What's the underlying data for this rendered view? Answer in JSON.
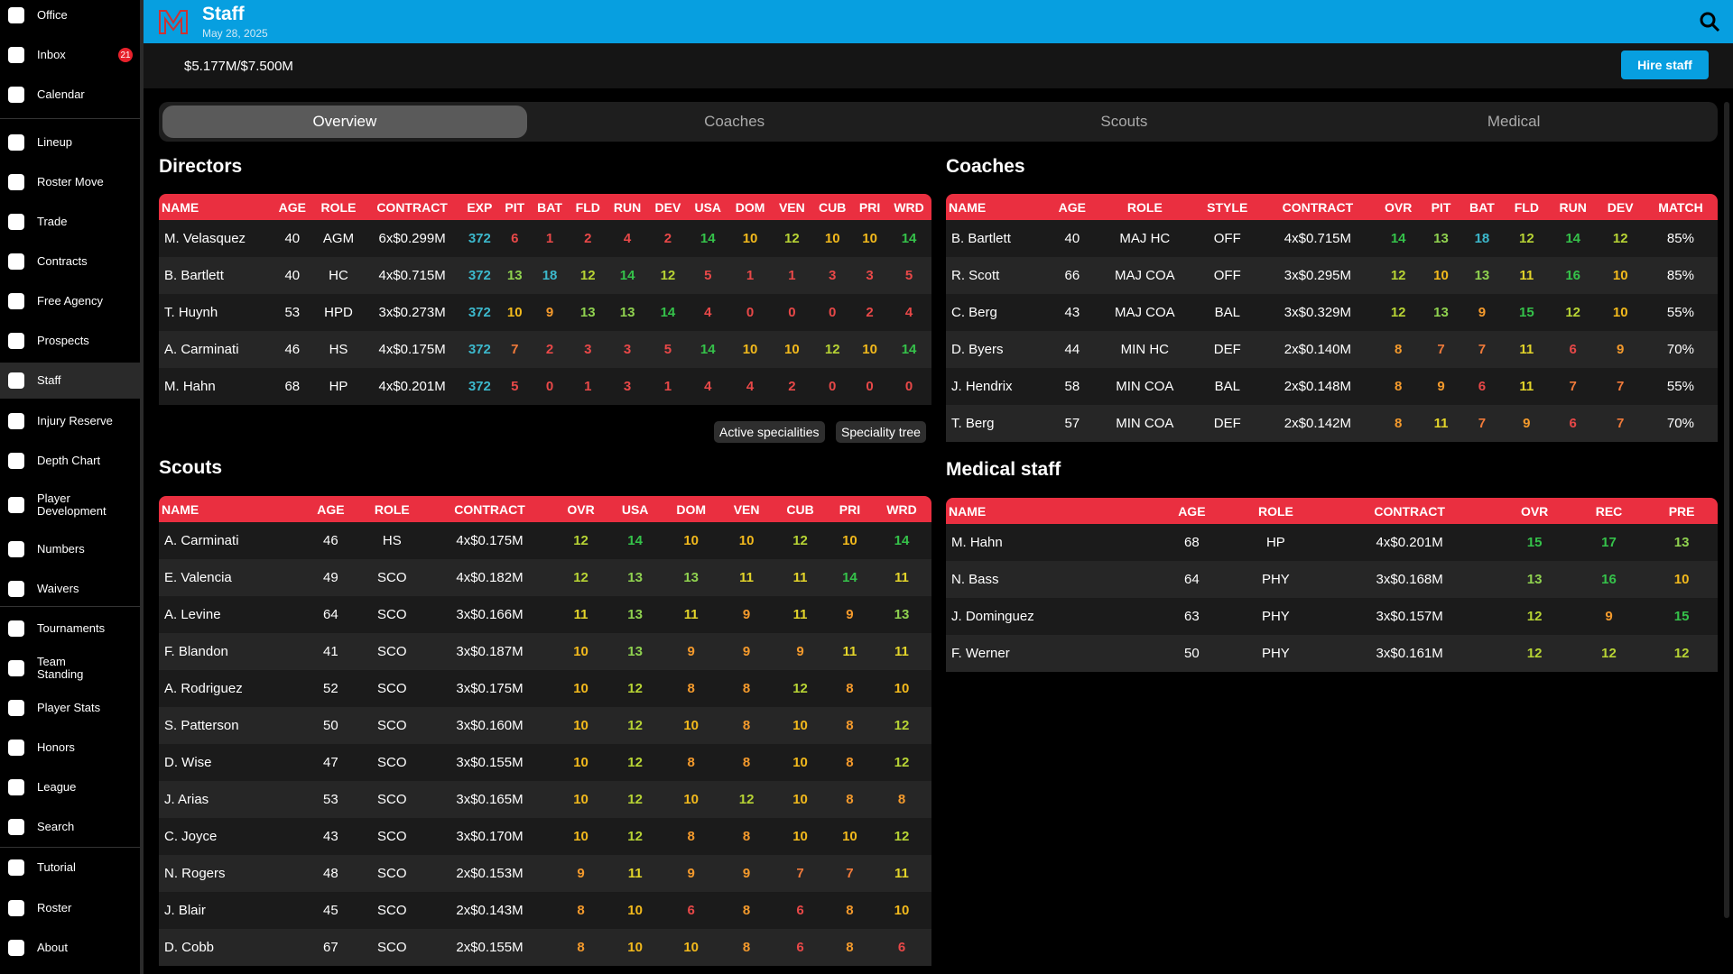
{
  "sidebar": {
    "items": [
      {
        "label": "Office"
      },
      {
        "label": "Inbox",
        "badge": "21"
      },
      {
        "label": "Calendar"
      },
      {
        "label": "Lineup"
      },
      {
        "label": "Roster Move"
      },
      {
        "label": "Trade"
      },
      {
        "label": "Contracts"
      },
      {
        "label": "Free Agency"
      },
      {
        "label": "Prospects"
      },
      {
        "label": "Staff"
      },
      {
        "label": "Injury Reserve"
      },
      {
        "label": "Depth Chart"
      },
      {
        "label": "Player Development"
      },
      {
        "label": "Numbers"
      },
      {
        "label": "Waivers"
      },
      {
        "label": "Tournaments"
      },
      {
        "label": "Team Standing"
      },
      {
        "label": "Player Stats"
      },
      {
        "label": "Honors"
      },
      {
        "label": "League"
      },
      {
        "label": "Search"
      },
      {
        "label": "Tutorial"
      },
      {
        "label": "Roster"
      },
      {
        "label": "About"
      }
    ]
  },
  "header": {
    "title": "Staff",
    "date": "May 28, 2025"
  },
  "budget": "$5.177M/$7.500M",
  "hire_button": "Hire staff",
  "tabs": [
    "Overview",
    "Coaches",
    "Scouts",
    "Medical"
  ],
  "speciality_buttons": [
    "Active specialities",
    "Speciality tree"
  ],
  "tables": {
    "directors": {
      "title": "Directors",
      "columns": [
        "NAME",
        "AGE",
        "ROLE",
        "CONTRACT",
        "EXP",
        "PIT",
        "BAT",
        "FLD",
        "RUN",
        "DEV",
        "USA",
        "DOM",
        "VEN",
        "CUB",
        "PRI",
        "WRD"
      ],
      "rows": [
        [
          "M. Velasquez",
          40,
          "AGM",
          "6x$0.299M",
          372,
          6,
          1,
          2,
          4,
          2,
          14,
          10,
          12,
          10,
          10,
          14
        ],
        [
          "B. Bartlett",
          40,
          "HC",
          "4x$0.715M",
          372,
          13,
          18,
          12,
          14,
          12,
          5,
          1,
          1,
          3,
          3,
          5
        ],
        [
          "T. Huynh",
          53,
          "HPD",
          "3x$0.273M",
          372,
          10,
          9,
          13,
          13,
          14,
          4,
          0,
          0,
          0,
          2,
          4
        ],
        [
          "A. Carminati",
          46,
          "HS",
          "4x$0.175M",
          372,
          7,
          2,
          3,
          3,
          5,
          14,
          10,
          10,
          12,
          10,
          14
        ],
        [
          "M. Hahn",
          68,
          "HP",
          "4x$0.201M",
          372,
          5,
          0,
          1,
          3,
          1,
          4,
          4,
          2,
          0,
          0,
          0
        ]
      ]
    },
    "coaches": {
      "title": "Coaches",
      "columns": [
        "NAME",
        "AGE",
        "ROLE",
        "STYLE",
        "CONTRACT",
        "OVR",
        "PIT",
        "BAT",
        "FLD",
        "RUN",
        "DEV",
        "MATCH"
      ],
      "rows": [
        [
          "B. Bartlett",
          40,
          "MAJ HC",
          "OFF",
          "4x$0.715M",
          14,
          13,
          18,
          12,
          14,
          12,
          "85%"
        ],
        [
          "R. Scott",
          66,
          "MAJ COA",
          "OFF",
          "3x$0.295M",
          12,
          10,
          13,
          11,
          16,
          10,
          "85%"
        ],
        [
          "C. Berg",
          43,
          "MAJ COA",
          "BAL",
          "3x$0.329M",
          12,
          13,
          9,
          15,
          12,
          10,
          "55%"
        ],
        [
          "D. Byers",
          44,
          "MIN HC",
          "DEF",
          "2x$0.140M",
          8,
          7,
          7,
          11,
          6,
          9,
          "70%"
        ],
        [
          "J. Hendrix",
          58,
          "MIN COA",
          "BAL",
          "2x$0.148M",
          8,
          9,
          6,
          11,
          7,
          7,
          "55%"
        ],
        [
          "T. Berg",
          57,
          "MIN COA",
          "DEF",
          "2x$0.142M",
          8,
          11,
          7,
          9,
          6,
          7,
          "70%"
        ]
      ]
    },
    "scouts": {
      "title": "Scouts",
      "columns": [
        "NAME",
        "AGE",
        "ROLE",
        "CONTRACT",
        "OVR",
        "USA",
        "DOM",
        "VEN",
        "CUB",
        "PRI",
        "WRD"
      ],
      "rows": [
        [
          "A. Carminati",
          46,
          "HS",
          "4x$0.175M",
          12,
          14,
          10,
          10,
          12,
          10,
          14
        ],
        [
          "E. Valencia",
          49,
          "SCO",
          "4x$0.182M",
          12,
          13,
          13,
          11,
          11,
          14,
          11
        ],
        [
          "A. Levine",
          64,
          "SCO",
          "3x$0.166M",
          11,
          13,
          11,
          9,
          11,
          9,
          13
        ],
        [
          "F. Blandon",
          41,
          "SCO",
          "3x$0.187M",
          10,
          13,
          9,
          9,
          9,
          11,
          11
        ],
        [
          "A. Rodriguez",
          52,
          "SCO",
          "3x$0.175M",
          10,
          12,
          8,
          8,
          12,
          8,
          10
        ],
        [
          "S. Patterson",
          50,
          "SCO",
          "3x$0.160M",
          10,
          12,
          10,
          8,
          10,
          8,
          12
        ],
        [
          "D. Wise",
          47,
          "SCO",
          "3x$0.155M",
          10,
          12,
          8,
          8,
          10,
          8,
          12
        ],
        [
          "J. Arias",
          53,
          "SCO",
          "3x$0.165M",
          10,
          12,
          10,
          12,
          10,
          8,
          8
        ],
        [
          "C. Joyce",
          43,
          "SCO",
          "3x$0.170M",
          10,
          12,
          8,
          8,
          10,
          10,
          12
        ],
        [
          "N. Rogers",
          48,
          "SCO",
          "2x$0.153M",
          9,
          11,
          9,
          9,
          7,
          7,
          11
        ],
        [
          "J. Blair",
          45,
          "SCO",
          "2x$0.143M",
          8,
          10,
          6,
          8,
          6,
          8,
          10
        ],
        [
          "D. Cobb",
          67,
          "SCO",
          "2x$0.155M",
          8,
          10,
          10,
          8,
          6,
          8,
          6
        ]
      ]
    },
    "medical": {
      "title": "Medical staff",
      "columns": [
        "NAME",
        "AGE",
        "ROLE",
        "CONTRACT",
        "OVR",
        "REC",
        "PRE"
      ],
      "rows": [
        [
          "M. Hahn",
          68,
          "HP",
          "4x$0.201M",
          15,
          17,
          13
        ],
        [
          "N. Bass",
          64,
          "PHY",
          "3x$0.168M",
          13,
          16,
          10
        ],
        [
          "J. Dominguez",
          63,
          "PHY",
          "3x$0.157M",
          12,
          9,
          15
        ],
        [
          "F. Werner",
          50,
          "PHY",
          "3x$0.161M",
          12,
          12,
          12
        ]
      ]
    }
  }
}
